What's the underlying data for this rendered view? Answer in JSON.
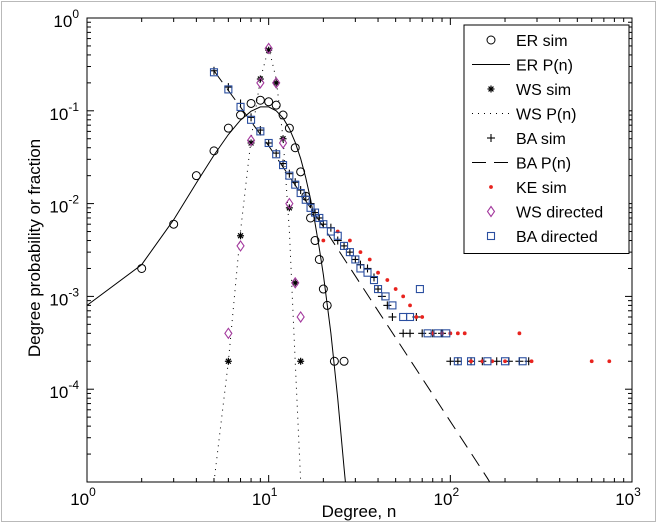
{
  "chart_data": {
    "type": "scatter",
    "title": "",
    "xlabel": "Degree, n",
    "ylabel": "Degree probability or fraction",
    "xscale": "log",
    "yscale": "log",
    "xlim": [
      1,
      1000
    ],
    "ylim": [
      1e-05,
      1
    ],
    "x_ticks": [
      {
        "value": 1,
        "base": "10",
        "exp": "0"
      },
      {
        "value": 10,
        "base": "10",
        "exp": "1"
      },
      {
        "value": 100,
        "base": "10",
        "exp": "2"
      },
      {
        "value": 1000,
        "base": "10",
        "exp": "3"
      }
    ],
    "y_ticks": [
      {
        "value": 0.0001,
        "base": "10",
        "exp": "-4"
      },
      {
        "value": 0.001,
        "base": "10",
        "exp": "-3"
      },
      {
        "value": 0.01,
        "base": "10",
        "exp": "-2"
      },
      {
        "value": 0.1,
        "base": "10",
        "exp": "-1"
      },
      {
        "value": 1,
        "base": "10",
        "exp": "0"
      }
    ],
    "grid": false,
    "legend_position": "top-right",
    "series": [
      {
        "name": "ER sim",
        "kind": "marker",
        "marker": "circle",
        "color": "#000000",
        "points": [
          [
            2,
            0.002
          ],
          [
            3,
            0.006
          ],
          [
            4,
            0.02
          ],
          [
            5,
            0.037
          ],
          [
            6,
            0.065
          ],
          [
            7,
            0.09
          ],
          [
            8,
            0.12
          ],
          [
            9,
            0.13
          ],
          [
            10,
            0.125
          ],
          [
            11,
            0.115
          ],
          [
            12,
            0.09
          ],
          [
            13,
            0.065
          ],
          [
            14,
            0.04
          ],
          [
            15,
            0.022
          ],
          [
            16,
            0.012
          ],
          [
            17,
            0.007
          ],
          [
            18,
            0.004
          ],
          [
            19,
            0.0025
          ],
          [
            20,
            0.0012
          ],
          [
            21,
            0.0008
          ],
          [
            23,
            0.0002
          ],
          [
            26,
            0.0002
          ]
        ]
      },
      {
        "name": "ER P(n)",
        "kind": "line",
        "dash": "solid",
        "color": "#000000",
        "points": [
          [
            1,
            0.0008
          ],
          [
            2,
            0.0022
          ],
          [
            3,
            0.0067
          ],
          [
            4,
            0.0167
          ],
          [
            5,
            0.0333
          ],
          [
            6,
            0.0555
          ],
          [
            7,
            0.0793
          ],
          [
            8,
            0.0991
          ],
          [
            9,
            0.1101
          ],
          [
            10,
            0.1101
          ],
          [
            11,
            0.1001
          ],
          [
            12,
            0.0834
          ],
          [
            13,
            0.0641
          ],
          [
            14,
            0.0458
          ],
          [
            15,
            0.0305
          ],
          [
            16,
            0.0191
          ],
          [
            17,
            0.0112
          ],
          [
            18,
            0.0062
          ],
          [
            19,
            0.0033
          ],
          [
            20,
            0.0017
          ],
          [
            22,
            0.0004
          ],
          [
            24,
            8e-05
          ],
          [
            26,
            1.4e-05
          ],
          [
            27.5,
            4.5e-06
          ]
        ]
      },
      {
        "name": "WS sim",
        "kind": "marker",
        "marker": "asterisk",
        "color": "#000000",
        "points": [
          [
            6,
            0.0002
          ],
          [
            7,
            0.0045
          ],
          [
            8,
            0.045
          ],
          [
            9,
            0.22
          ],
          [
            10,
            0.45
          ],
          [
            11,
            0.2
          ],
          [
            12,
            0.05
          ],
          [
            13,
            0.009
          ],
          [
            14,
            0.0014
          ],
          [
            15,
            0.0002
          ]
        ]
      },
      {
        "name": "WS P(n)",
        "kind": "line",
        "dash": "dotted",
        "color": "#000000",
        "points": [
          [
            5,
            1e-05
          ],
          [
            6,
            0.0002
          ],
          [
            7,
            0.005
          ],
          [
            8,
            0.05
          ],
          [
            9,
            0.22
          ],
          [
            10,
            0.48
          ],
          [
            11,
            0.22
          ],
          [
            12,
            0.05
          ],
          [
            13,
            0.005
          ],
          [
            14,
            0.0002
          ],
          [
            15,
            1e-05
          ]
        ]
      },
      {
        "name": "BA sim",
        "kind": "marker",
        "marker": "plus",
        "color": "#000000",
        "points": [
          [
            5,
            0.27
          ],
          [
            6,
            0.18
          ],
          [
            7,
            0.12
          ],
          [
            8,
            0.085
          ],
          [
            9,
            0.062
          ],
          [
            10,
            0.045
          ],
          [
            11,
            0.035
          ],
          [
            12,
            0.027
          ],
          [
            13,
            0.021
          ],
          [
            14,
            0.017
          ],
          [
            15,
            0.014
          ],
          [
            16,
            0.012
          ],
          [
            17,
            0.01
          ],
          [
            18,
            0.008
          ],
          [
            19,
            0.007
          ],
          [
            20,
            0.006
          ],
          [
            22,
            0.0055
          ],
          [
            24,
            0.004
          ],
          [
            26,
            0.0035
          ],
          [
            28,
            0.003
          ],
          [
            30,
            0.0025
          ],
          [
            32,
            0.0022
          ],
          [
            35,
            0.002
          ],
          [
            38,
            0.0016
          ],
          [
            40,
            0.0012
          ],
          [
            42,
            0.001
          ],
          [
            45,
            0.0008
          ],
          [
            48,
            0.0006
          ],
          [
            55,
            0.0004
          ],
          [
            60,
            0.0004
          ],
          [
            65,
            0.0006
          ],
          [
            70,
            0.0004
          ],
          [
            80,
            0.0004
          ],
          [
            90,
            0.0004
          ],
          [
            100,
            0.0002
          ],
          [
            110,
            0.0002
          ],
          [
            130,
            0.0002
          ],
          [
            150,
            0.0002
          ],
          [
            180,
            0.0002
          ],
          [
            210,
            0.0002
          ],
          [
            240,
            0.0002
          ],
          [
            270,
            0.0002
          ]
        ]
      },
      {
        "name": "BA P(n)",
        "kind": "line",
        "dash": "dashed",
        "color": "#000000",
        "points": [
          [
            5,
            0.27
          ],
          [
            10,
            0.042
          ],
          [
            20,
            0.0056
          ],
          [
            40,
            0.0007
          ],
          [
            80,
            8.8e-05
          ],
          [
            160,
            1.1e-05
          ],
          [
            175,
            8.2e-06
          ]
        ]
      },
      {
        "name": "KE sim",
        "kind": "marker",
        "marker": "dot",
        "color": "#e8231e",
        "points": [
          [
            20,
            0.004
          ],
          [
            24,
            0.005
          ],
          [
            28,
            0.004
          ],
          [
            32,
            0.003
          ],
          [
            36,
            0.0025
          ],
          [
            40,
            0.0018
          ],
          [
            45,
            0.0015
          ],
          [
            50,
            0.0012
          ],
          [
            55,
            0.001
          ],
          [
            60,
            0.0008
          ],
          [
            65,
            0.0006
          ],
          [
            70,
            0.0006
          ],
          [
            80,
            0.0004
          ],
          [
            90,
            0.0004
          ],
          [
            100,
            0.0004
          ],
          [
            110,
            0.0004
          ],
          [
            120,
            0.0004
          ],
          [
            130,
            0.0002
          ],
          [
            150,
            0.0002
          ],
          [
            170,
            0.0002
          ],
          [
            200,
            0.0002
          ],
          [
            240,
            0.0004
          ],
          [
            280,
            0.0002
          ],
          [
            600,
            0.0002
          ],
          [
            750,
            0.0002
          ]
        ]
      },
      {
        "name": "WS directed",
        "kind": "marker",
        "marker": "diamond",
        "color": "#a43a9e",
        "points": [
          [
            6,
            0.0004
          ],
          [
            7,
            0.0035
          ],
          [
            8,
            0.048
          ],
          [
            9,
            0.2
          ],
          [
            10,
            0.47
          ],
          [
            11,
            0.2
          ],
          [
            12,
            0.045
          ],
          [
            13,
            0.01
          ],
          [
            14,
            0.0014
          ],
          [
            15,
            0.0006
          ]
        ]
      },
      {
        "name": "BA directed",
        "kind": "marker",
        "marker": "square",
        "color": "#2b4fa0",
        "points": [
          [
            5,
            0.26
          ],
          [
            6,
            0.17
          ],
          [
            7,
            0.11
          ],
          [
            8,
            0.08
          ],
          [
            9,
            0.06
          ],
          [
            10,
            0.045
          ],
          [
            11,
            0.034
          ],
          [
            12,
            0.026
          ],
          [
            13,
            0.02
          ],
          [
            14,
            0.016
          ],
          [
            15,
            0.013
          ],
          [
            16,
            0.011
          ],
          [
            17,
            0.009
          ],
          [
            18,
            0.008
          ],
          [
            19,
            0.007
          ],
          [
            20,
            0.006
          ],
          [
            22,
            0.005
          ],
          [
            24,
            0.0045
          ],
          [
            26,
            0.0035
          ],
          [
            28,
            0.003
          ],
          [
            30,
            0.0025
          ],
          [
            32,
            0.002
          ],
          [
            35,
            0.0018
          ],
          [
            38,
            0.0015
          ],
          [
            40,
            0.0012
          ],
          [
            44,
            0.001
          ],
          [
            48,
            0.0008
          ],
          [
            55,
            0.0006
          ],
          [
            60,
            0.0006
          ],
          [
            68,
            0.0012
          ],
          [
            75,
            0.0004
          ],
          [
            85,
            0.0004
          ],
          [
            95,
            0.0004
          ],
          [
            110,
            0.0002
          ],
          [
            130,
            0.0002
          ],
          [
            160,
            0.0002
          ],
          [
            200,
            0.0002
          ],
          [
            250,
            0.0002
          ]
        ]
      }
    ]
  }
}
